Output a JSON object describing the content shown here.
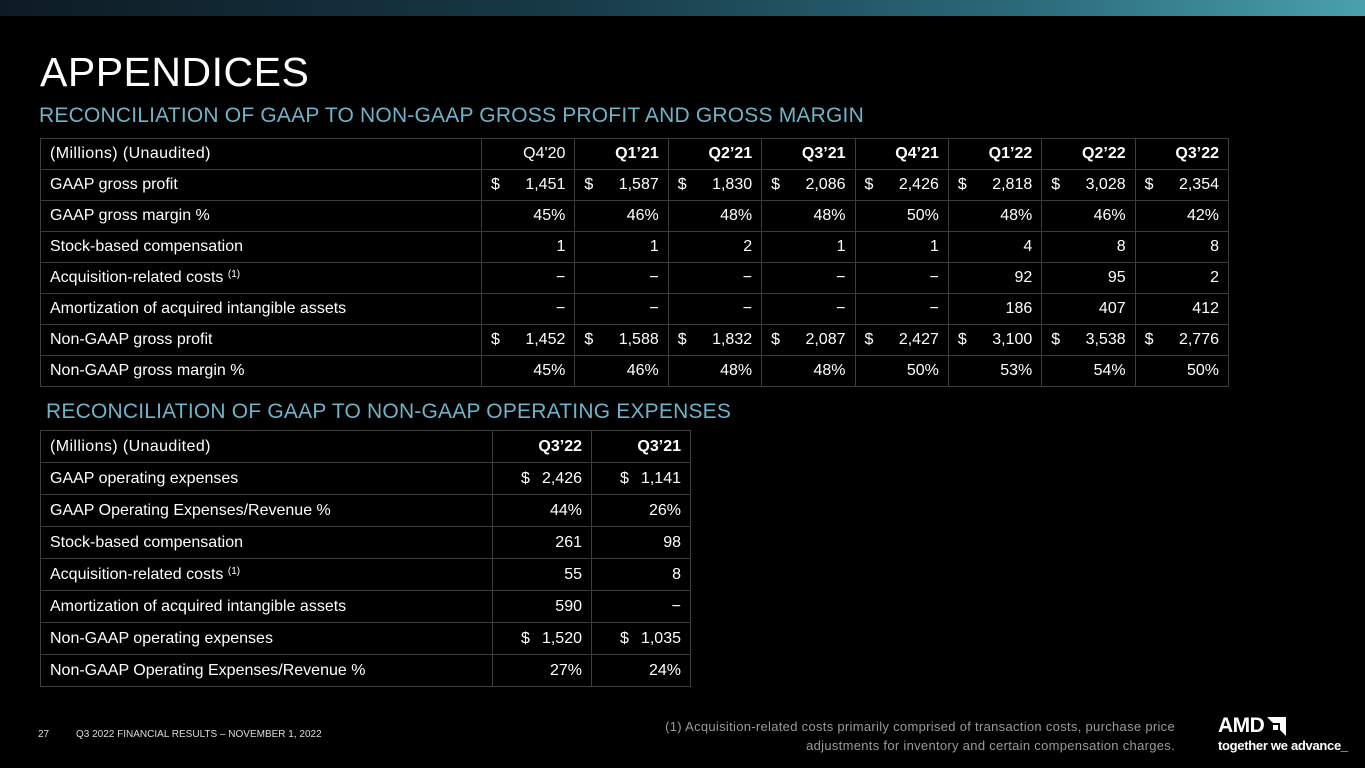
{
  "title": "APPENDICES",
  "section1": {
    "heading": "RECONCILIATION OF GAAP TO NON-GAAP GROSS PROFIT AND GROSS MARGIN",
    "units": "(Millions) (Unaudited)",
    "columns": [
      "Q4'20",
      "Q1’21",
      "Q2’21",
      "Q3’21",
      "Q4’21",
      "Q1’22",
      "Q2’22",
      "Q3’22"
    ],
    "rows": {
      "gaap_gross_profit": {
        "label": "GAAP gross profit",
        "values": [
          "1,451",
          "1,587",
          "1,830",
          "2,086",
          "2,426",
          "2,818",
          "3,028",
          "2,354"
        ]
      },
      "gaap_gross_margin": {
        "label": "GAAP gross margin %",
        "values": [
          "45%",
          "46%",
          "48%",
          "48%",
          "50%",
          "48%",
          "46%",
          "42%"
        ]
      },
      "stock_comp": {
        "label": "Stock-based compensation",
        "values": [
          "1",
          "1",
          "2",
          "1",
          "1",
          "4",
          "8",
          "8"
        ]
      },
      "acquisition": {
        "label": "Acquisition-related costs",
        "sup": "(1)",
        "values": [
          "−",
          "−",
          "−",
          "−",
          "−",
          "92",
          "95",
          "2"
        ]
      },
      "amortization": {
        "label": "Amortization of acquired intangible assets",
        "values": [
          "−",
          "−",
          "−",
          "−",
          "−",
          "186",
          "407",
          "412"
        ]
      },
      "nongaap_gross_profit": {
        "label": "Non-GAAP gross profit",
        "values": [
          "1,452",
          "1,588",
          "1,832",
          "2,087",
          "2,427",
          "3,100",
          "3,538",
          "2,776"
        ]
      },
      "nongaap_gross_margin": {
        "label": "Non-GAAP gross margin %",
        "values": [
          "45%",
          "46%",
          "48%",
          "48%",
          "50%",
          "53%",
          "54%",
          "50%"
        ]
      }
    }
  },
  "section2": {
    "heading": "RECONCILIATION OF GAAP TO NON-GAAP OPERATING EXPENSES",
    "units": "(Millions) (Unaudited)",
    "columns": [
      "Q3’22",
      "Q3’21"
    ],
    "rows": {
      "gaap_opex": {
        "label": "GAAP operating expenses",
        "values": [
          "2,426",
          "1,141"
        ]
      },
      "gaap_opex_rev": {
        "label": "GAAP Operating Expenses/Revenue %",
        "values": [
          "44%",
          "26%"
        ]
      },
      "stock_comp": {
        "label": "Stock-based compensation",
        "values": [
          "261",
          "98"
        ]
      },
      "acquisition": {
        "label": "Acquisition-related costs",
        "sup": "(1)",
        "values": [
          "55",
          "8"
        ]
      },
      "amortization": {
        "label": "Amortization of acquired intangible assets",
        "values": [
          "590",
          "−"
        ]
      },
      "nongaap_opex": {
        "label": "Non-GAAP operating expenses",
        "values": [
          "1,520",
          "1,035"
        ]
      },
      "nongaap_opex_rev": {
        "label": "Non-GAAP Operating Expenses/Revenue %",
        "values": [
          "27%",
          "24%"
        ]
      }
    }
  },
  "currency_symbol": "$",
  "footer": {
    "page_number": "27",
    "text": "Q3 2022 FINANCIAL RESULTS – NOVEMBER 1, 2022",
    "footnote_line1": "(1) Acquisition-related costs primarily comprised of transaction costs, purchase price",
    "footnote_line2": "adjustments for inventory and certain compensation charges."
  },
  "logo": {
    "brand": "AMD",
    "tagline": "together we advance_"
  },
  "colors": {
    "accent": "#6fb3c8",
    "background": "#000000",
    "border": "#3d3d3d"
  }
}
